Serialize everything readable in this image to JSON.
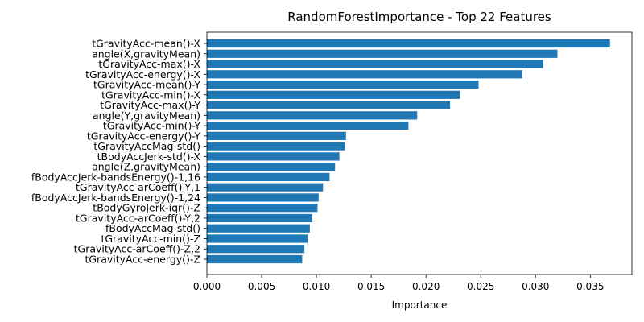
{
  "chart_data": {
    "type": "bar",
    "orientation": "horizontal",
    "title": "RandomForestImportance - Top 22 Features",
    "xlabel": "Importance",
    "ylabel": "",
    "xlim": [
      0,
      0.0388
    ],
    "xticks": [
      "0.000",
      "0.005",
      "0.010",
      "0.015",
      "0.020",
      "0.025",
      "0.030",
      "0.035"
    ],
    "bar_color": "#1f77b4",
    "grid": false,
    "categories": [
      "tGravityAcc-mean()-X",
      "angle(X,gravityMean)",
      "tGravityAcc-max()-X",
      "tGravityAcc-energy()-X",
      "tGravityAcc-mean()-Y",
      "tGravityAcc-min()-X",
      "tGravityAcc-max()-Y",
      "angle(Y,gravityMean)",
      "tGravityAcc-min()-Y",
      "tGravityAcc-energy()-Y",
      "tGravityAccMag-std()",
      "tBodyAccJerk-std()-X",
      "angle(Z,gravityMean)",
      "fBodyAccJerk-bandsEnergy()-1,16",
      "tGravityAcc-arCoeff()-Y,1",
      "fBodyAccJerk-bandsEnergy()-1,24",
      "tBodyGyroJerk-iqr()-Z",
      "tGravityAcc-arCoeff()-Y,2",
      "fBodyAccMag-std()",
      "tGravityAcc-min()-Z",
      "tGravityAcc-arCoeff()-Z,2",
      "tGravityAcc-energy()-Z"
    ],
    "values": [
      0.0368,
      0.032,
      0.0307,
      0.0288,
      0.0248,
      0.0231,
      0.0222,
      0.0192,
      0.0184,
      0.0127,
      0.0126,
      0.0121,
      0.0117,
      0.0112,
      0.0106,
      0.0102,
      0.0101,
      0.0096,
      0.0094,
      0.0092,
      0.0089,
      0.0087
    ]
  }
}
